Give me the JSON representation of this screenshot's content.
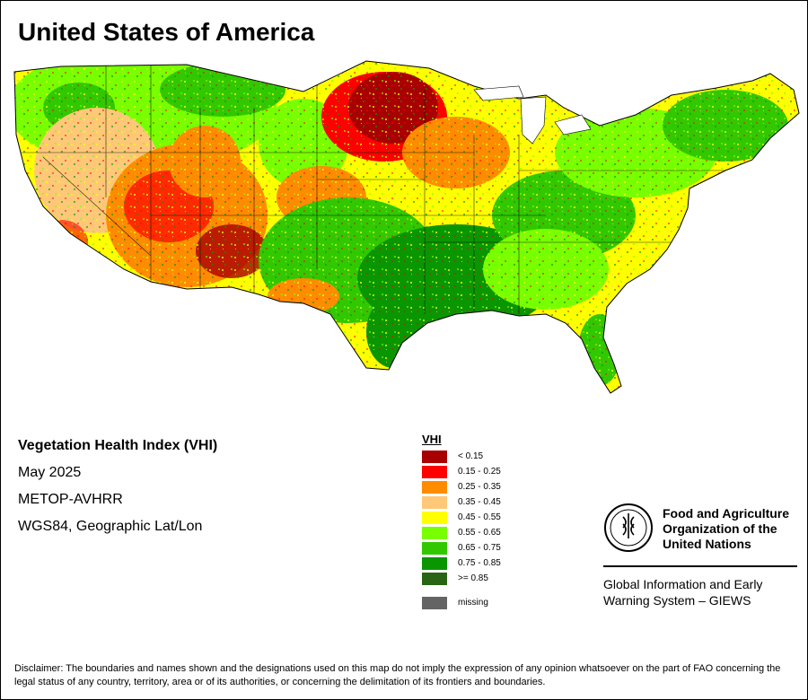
{
  "title": "United States of America",
  "info": {
    "index_name": "Vegetation Health Index (VHI)",
    "period": "May 2025",
    "sensor": "METOP-AVHRR",
    "projection": "WGS84, Geographic Lat/Lon"
  },
  "legend": {
    "title": "VHI",
    "classes": [
      {
        "label": "< 0.15",
        "color": "#a80000"
      },
      {
        "label": "0.15 - 0.25",
        "color": "#ff0000"
      },
      {
        "label": "0.25 - 0.35",
        "color": "#ff8c00"
      },
      {
        "label": "0.35 - 0.45",
        "color": "#ffc878"
      },
      {
        "label": "0.45 - 0.55",
        "color": "#ffff00"
      },
      {
        "label": "0.55 - 0.65",
        "color": "#78ff00"
      },
      {
        "label": "0.65 - 0.75",
        "color": "#32c800"
      },
      {
        "label": "0.75 - 0.85",
        "color": "#0a9600"
      },
      {
        "label": ">= 0.85",
        "color": "#286414"
      }
    ],
    "missing": {
      "label": "missing",
      "color": "#646464"
    }
  },
  "organization": {
    "logo_text": "FAO",
    "logo_motto": "FIAT PANIS",
    "name_line1": "Food and Agriculture",
    "name_line2": "Organization of the",
    "name_line3": "United Nations",
    "system_line1": "Global Information and Early",
    "system_line2": "Warning System – GIEWS"
  },
  "disclaimer": "Disclaimer: The boundaries and names shown and the designations used on this map do not imply the expression of any opinion whatsoever on the part of FAO concerning the legal status of any country, territory, area or of its authorities, or concerning the delimitation of its frontiers and boundaries."
}
